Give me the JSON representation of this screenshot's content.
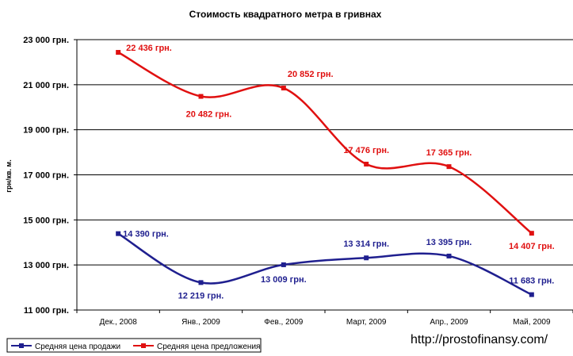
{
  "chart_data": {
    "type": "line",
    "title": "Стоимость квадратного метра в гривнах",
    "ylabel": "грн/кв. м.",
    "xlabel": "",
    "categories": [
      "Дек., 2008",
      "Янв., 2009",
      "Фев., 2009",
      "Март, 2009",
      "Апр., 2009",
      "Май, 2009"
    ],
    "ylim": [
      11000,
      23000
    ],
    "yticks": [
      11000,
      13000,
      15000,
      17000,
      19000,
      21000,
      23000
    ],
    "ytick_labels": [
      "11 000 грн.",
      "13 000 грн.",
      "15 000 грн.",
      "17 000 грн.",
      "19 000 грн.",
      "21 000 грн.",
      "23 000 грн."
    ],
    "grid": true,
    "legend_position": "bottom-left",
    "series": [
      {
        "name": "Средняя цена продажи",
        "color": "#1f1f8f",
        "values": [
          14390,
          12219,
          13009,
          13314,
          13395,
          11683
        ],
        "labels": [
          "14 390 грн.",
          "12 219 грн.",
          "13 009 грн.",
          "13 314 грн.",
          "13 395 грн.",
          "11 683 грн."
        ]
      },
      {
        "name": "Средняя цена предложения",
        "color": "#e01010",
        "values": [
          22436,
          20482,
          20852,
          17476,
          17365,
          14407
        ],
        "labels": [
          "22 436 грн.",
          "20 482 грн.",
          "20 852 грн.",
          "17 476 грн.",
          "17 365 грн.",
          "14 407 грн."
        ]
      }
    ]
  },
  "watermark": "http://prostofinansy.com/"
}
